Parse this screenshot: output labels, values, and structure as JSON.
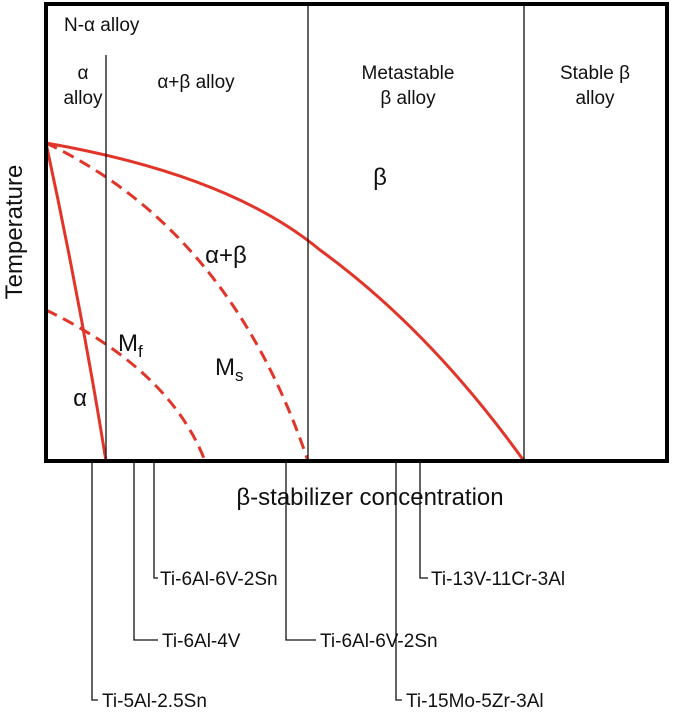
{
  "regions": [
    {
      "lines": [
        "N-α alloy"
      ]
    },
    {
      "lines": [
        "α",
        "alloy"
      ]
    },
    {
      "lines": [
        "α+β alloy"
      ]
    },
    {
      "lines": [
        "Metastable",
        "β alloy"
      ]
    },
    {
      "lines": [
        "Stable β",
        "alloy"
      ]
    }
  ],
  "phases": {
    "beta": "β",
    "alpha_beta": "α+β",
    "alpha": "α",
    "mf": {
      "main": "M",
      "sub": "f"
    },
    "ms": {
      "main": "M",
      "sub": "s"
    }
  },
  "axes": {
    "y_label": "Temperature",
    "x_label": "β-stabilizer concentration"
  },
  "alloys": [
    "Ti-5Al-2.5Sn",
    "Ti-6Al-4V",
    "Ti-6Al-6V-2Sn",
    "Ti-6Al-6V-2Sn",
    "Ti-13V-11Cr-3Al",
    "Ti-15Mo-5Zr-3Al"
  ]
}
